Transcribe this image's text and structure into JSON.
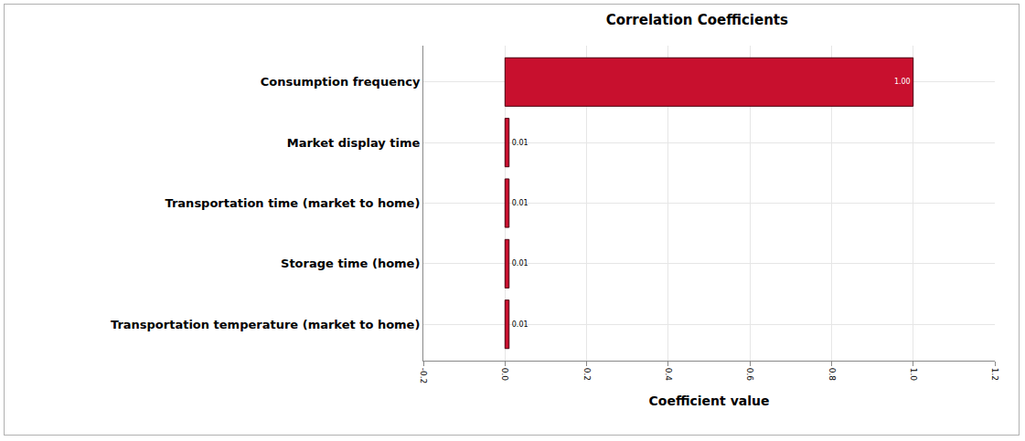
{
  "chart_data": {
    "type": "bar",
    "orientation": "horizontal",
    "title": "Correlation Coefficients",
    "x_label": "Coefficient value",
    "categories": [
      "Consumption frequency",
      "Market display time",
      "Transportation time (market to home)",
      "Storage time (home)",
      "Transportation temperature (market to home)"
    ],
    "values": [
      1.0,
      0.01,
      0.01,
      0.01,
      0.01
    ],
    "value_labels": [
      "1.00",
      "0.01",
      "0.01",
      "0.01",
      "0.01"
    ],
    "color": "#c8102e",
    "xlim": [
      -0.2,
      1.2
    ],
    "xticks": [
      -0.2,
      {
        "value": 0,
        "label": "0.0"
      },
      0.2,
      0.4,
      0.6,
      0.8,
      {
        "value": 1,
        "label": "1.0"
      },
      1.2
    ],
    "grid": true,
    "data_labels": true
  }
}
